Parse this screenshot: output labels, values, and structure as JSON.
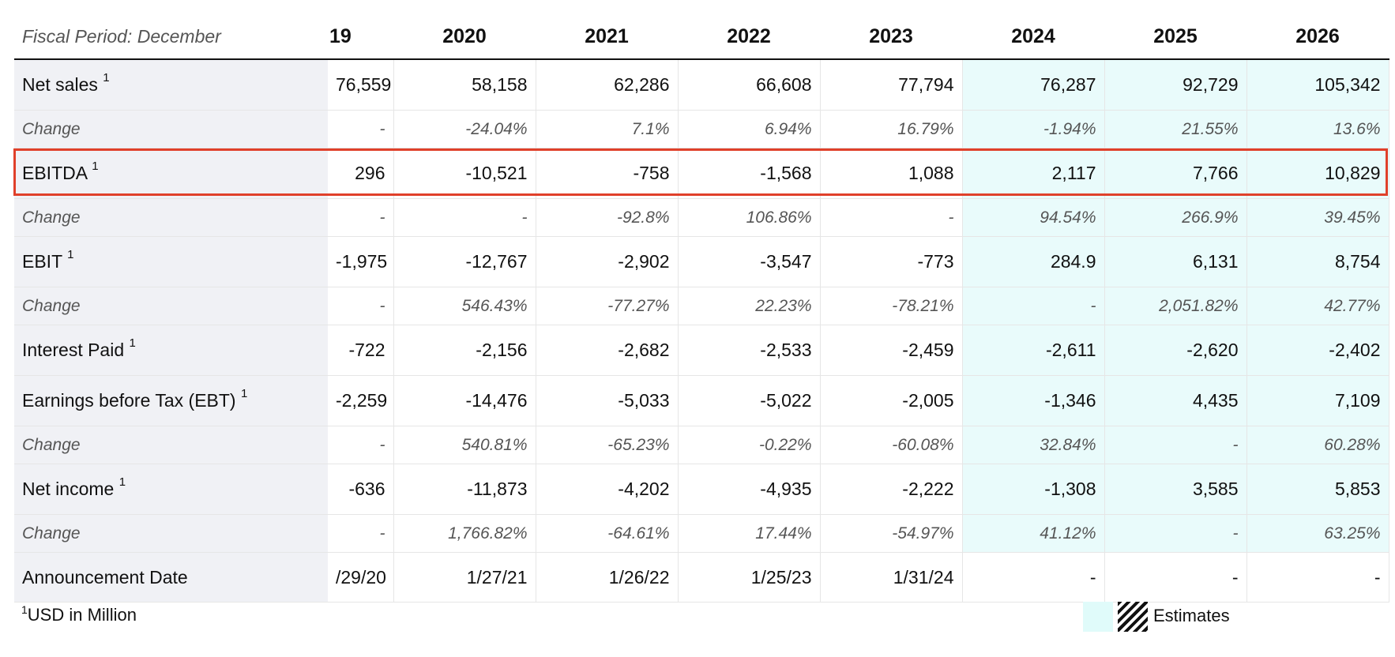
{
  "table": {
    "header": [
      "Fiscal Period: December",
      "19",
      "2020",
      "2021",
      "2022",
      "2023",
      "2024",
      "2025",
      "2026"
    ],
    "rows": [
      {
        "label": "Net sales",
        "sup": "1",
        "type": "main",
        "values": [
          "76,559",
          "58,158",
          "62,286",
          "66,608",
          "77,794",
          "76,287",
          "92,729",
          "105,342"
        ]
      },
      {
        "label": "Change",
        "sup": "",
        "type": "chg",
        "values": [
          "-",
          "-24.04%",
          "7.1%",
          "6.94%",
          "16.79%",
          "-1.94%",
          "21.55%",
          "13.6%"
        ]
      },
      {
        "label": "EBITDA",
        "sup": "1",
        "type": "main",
        "values": [
          "296",
          "-10,521",
          "-758",
          "-1,568",
          "1,088",
          "2,117",
          "7,766",
          "10,829"
        ]
      },
      {
        "label": "Change",
        "sup": "",
        "type": "chg",
        "values": [
          "-",
          "-",
          "-92.8%",
          "106.86%",
          "-",
          "94.54%",
          "266.9%",
          "39.45%"
        ]
      },
      {
        "label": "EBIT",
        "sup": "1",
        "type": "main",
        "values": [
          "-1,975",
          "-12,767",
          "-2,902",
          "-3,547",
          "-773",
          "284.9",
          "6,131",
          "8,754"
        ]
      },
      {
        "label": "Change",
        "sup": "",
        "type": "chg",
        "values": [
          "-",
          "546.43%",
          "-77.27%",
          "22.23%",
          "-78.21%",
          "-",
          "2,051.82%",
          "42.77%"
        ]
      },
      {
        "label": "Interest Paid",
        "sup": "1",
        "type": "main",
        "values": [
          "-722",
          "-2,156",
          "-2,682",
          "-2,533",
          "-2,459",
          "-2,611",
          "-2,620",
          "-2,402"
        ]
      },
      {
        "label": "Earnings before Tax (EBT)",
        "sup": "1",
        "type": "main",
        "values": [
          "-2,259",
          "-14,476",
          "-5,033",
          "-5,022",
          "-2,005",
          "-1,346",
          "4,435",
          "7,109"
        ]
      },
      {
        "label": "Change",
        "sup": "",
        "type": "chg",
        "values": [
          "-",
          "540.81%",
          "-65.23%",
          "-0.22%",
          "-60.08%",
          "32.84%",
          "-",
          "60.28%"
        ]
      },
      {
        "label": "Net income",
        "sup": "1",
        "type": "main",
        "values": [
          "-636",
          "-11,873",
          "-4,202",
          "-4,935",
          "-2,222",
          "-1,308",
          "3,585",
          "5,853"
        ]
      },
      {
        "label": "Change",
        "sup": "",
        "type": "chg",
        "values": [
          "-",
          "1,766.82%",
          "-64.61%",
          "17.44%",
          "-54.97%",
          "41.12%",
          "-",
          "63.25%"
        ]
      },
      {
        "label": "Announcement Date",
        "sup": "",
        "type": "date",
        "values": [
          "/29/20",
          "1/27/21",
          "1/26/22",
          "1/25/23",
          "1/31/24",
          "-",
          "-",
          "-"
        ]
      }
    ],
    "estimate_columns": [
      "2024",
      "2025",
      "2026"
    ],
    "highlighted_row": "EBITDA"
  },
  "footer": {
    "note_sup": "1",
    "note_text": "USD in Million",
    "legend_label": "Estimates"
  },
  "colors": {
    "estimate_bg": "#e9fbfb",
    "label_bg": "#f0f1f5",
    "highlight_border": "#e0402a"
  }
}
